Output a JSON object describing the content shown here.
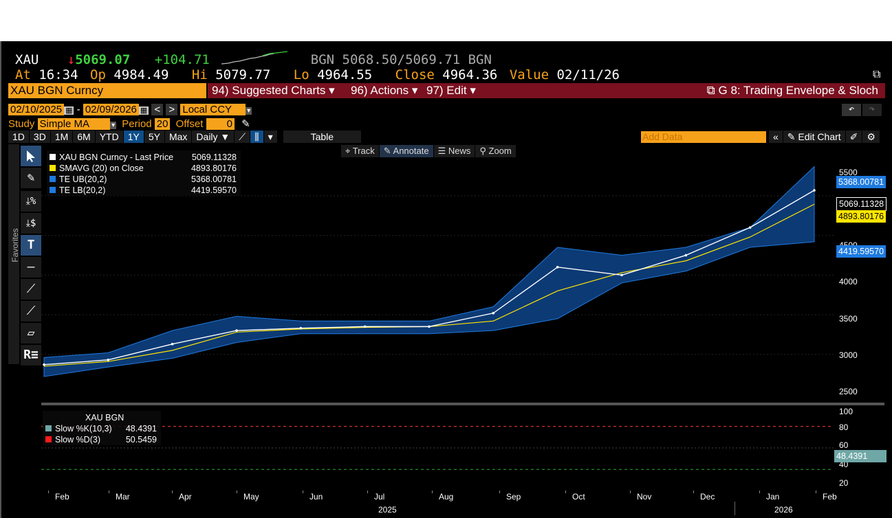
{
  "header": {
    "ticker": "XAU",
    "arrow": "↓",
    "last": "5069.07",
    "change": "+104.71",
    "bid_label": "BGN",
    "bid": "5068.50",
    "ask": "5069.71",
    "ask_label": "BGN",
    "at_label": "At",
    "at": "16:34",
    "op_label": "Op",
    "op": "4984.49",
    "hi_label": "Hi",
    "hi": "5079.77",
    "lo_label": "Lo",
    "lo": "4964.55",
    "close_label": "Close",
    "close": "4964.36",
    "value_label": "Value",
    "value": "02/11/26"
  },
  "menubar": {
    "security": "XAU BGN Curncy",
    "suggested": "94) Suggested Charts",
    "actions": "96) Actions",
    "edit": "97) Edit",
    "chart_title": "G 8: Trading Envelope & Sloch"
  },
  "daterow": {
    "start": "02/10/2025",
    "end": "02/09/2026",
    "currency": "Local CCY"
  },
  "studyrow": {
    "study_label": "Study",
    "study": "Simple MA",
    "period_label": "Period",
    "period": "20",
    "offset_label": "Offset",
    "offset": "0"
  },
  "toolbar": {
    "ranges": [
      "1D",
      "3D",
      "1M",
      "6M",
      "YTD",
      "1Y",
      "5Y",
      "Max"
    ],
    "selected": "1Y",
    "freq": "Daily",
    "table": "Table",
    "add_data_placeholder": "Add Data",
    "edit_chart": "Edit Chart"
  },
  "subtoolbar": {
    "track": "Track",
    "annotate": "Annotate",
    "news": "News",
    "zoom": "Zoom"
  },
  "legend": [
    {
      "name": "XAU BGN Curncy - Last Price",
      "value": "5069.11328",
      "color": "#ffffff"
    },
    {
      "name": "SMAVG (20)  on Close",
      "value": "4893.80176",
      "color": "#ffe600"
    },
    {
      "name": "TE UB(20,2)",
      "value": "5368.00781",
      "color": "#1f7be0"
    },
    {
      "name": "TE LB(20,2)",
      "value": "4419.59570",
      "color": "#1f7be0"
    }
  ],
  "price_labels": {
    "ub": "5368.00781",
    "last": "5069.11328",
    "sma": "4893.80176",
    "lb": "4419.59570"
  },
  "y_ticks": [
    "5500",
    "4500",
    "4000",
    "3500",
    "3000",
    "2500"
  ],
  "lower": {
    "title": "XAU BGN",
    "k_label": "Slow %K(10,3)",
    "k_value": "48.4391",
    "d_label": "Slow %D(3)",
    "d_value": "50.5459",
    "current": "48.4391",
    "y_ticks": [
      "100",
      "80",
      "60",
      "40",
      "20"
    ]
  },
  "x_months": [
    "Feb",
    "Mar",
    "Apr",
    "May",
    "Jun",
    "Jul",
    "Aug",
    "Sep",
    "Oct",
    "Nov",
    "Dec",
    "Jan",
    "Feb"
  ],
  "x_years": [
    "2025",
    "2026"
  ],
  "sidebar": {
    "favorites": "Favorites"
  },
  "colors": {
    "orange": "#f7a21b",
    "band": "#0c3a75",
    "band_edge": "#1f7be0",
    "sma": "#ffe600",
    "k": "#6fa7a6",
    "d": "#ff1a1a"
  },
  "chart_data": {
    "type": "line",
    "x": [
      "Feb",
      "Mar",
      "Apr",
      "May",
      "Jun",
      "Jul",
      "Aug",
      "Sep",
      "Oct",
      "Nov",
      "Dec",
      "Jan",
      "Feb"
    ],
    "series": [
      {
        "name": "XAU BGN Curncy - Last Price",
        "values": [
          2870,
          2930,
          3130,
          3300,
          3330,
          3350,
          3350,
          3520,
          4100,
          4000,
          4250,
          4600,
          5069
        ]
      },
      {
        "name": "SMAVG (20)  on Close",
        "values": [
          2850,
          2910,
          3050,
          3280,
          3320,
          3340,
          3350,
          3420,
          3800,
          4030,
          4180,
          4480,
          4894
        ]
      },
      {
        "name": "TE UB(20,2)",
        "values": [
          2960,
          3020,
          3300,
          3480,
          3420,
          3420,
          3420,
          3600,
          4350,
          4250,
          4350,
          4600,
          5368
        ]
      },
      {
        "name": "TE LB(20,2)",
        "values": [
          2720,
          2840,
          2950,
          3150,
          3260,
          3260,
          3260,
          3300,
          3450,
          3900,
          4050,
          4350,
          4420
        ]
      }
    ],
    "ylim": [
      2400,
      5650
    ]
  }
}
